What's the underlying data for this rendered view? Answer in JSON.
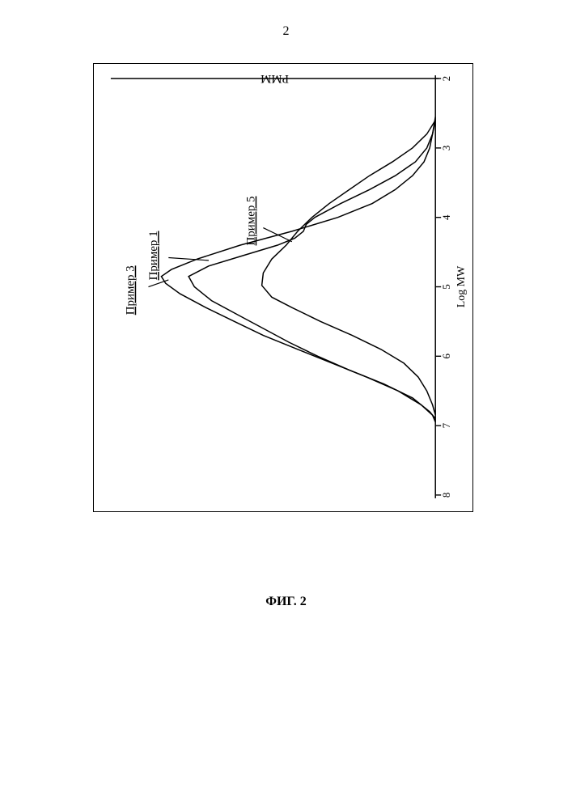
{
  "page": {
    "number": "2",
    "caption": "ФИГ. 2"
  },
  "chart": {
    "type": "line",
    "orientation": "rotated-90-ccw",
    "x_axis": {
      "label": "Log MW",
      "ticks": [
        2,
        3,
        4,
        5,
        6,
        7,
        8
      ],
      "range": [
        2,
        8
      ],
      "label_fontsize": 14,
      "tick_fontsize": 13
    },
    "y_axis": {
      "label": "PMM",
      "label_fontsize": 15,
      "range": [
        0,
        1
      ],
      "ticks": [],
      "show_ticks": false
    },
    "background_color": "#ffffff",
    "line_color": "#000000",
    "line_width": 1.5,
    "series": [
      {
        "name": "Пример 1",
        "label_pos_logmw": 4.55,
        "label_pos_y": 0.97,
        "pointer": {
          "from_logmw": 4.58,
          "from_y": 0.93,
          "to_logmw": 4.62,
          "to_y": 0.79
        },
        "points": [
          [
            2.6,
            0.0
          ],
          [
            2.8,
            0.01
          ],
          [
            3.0,
            0.03
          ],
          [
            3.2,
            0.07
          ],
          [
            3.4,
            0.14
          ],
          [
            3.6,
            0.23
          ],
          [
            3.8,
            0.33
          ],
          [
            4.0,
            0.42
          ],
          [
            4.1,
            0.45
          ],
          [
            4.2,
            0.46
          ],
          [
            4.3,
            0.49
          ],
          [
            4.4,
            0.55
          ],
          [
            4.55,
            0.67
          ],
          [
            4.7,
            0.79
          ],
          [
            4.85,
            0.86
          ],
          [
            5.0,
            0.84
          ],
          [
            5.2,
            0.78
          ],
          [
            5.4,
            0.69
          ],
          [
            5.6,
            0.6
          ],
          [
            5.8,
            0.51
          ],
          [
            6.0,
            0.41
          ],
          [
            6.2,
            0.3
          ],
          [
            6.4,
            0.18
          ],
          [
            6.6,
            0.08
          ],
          [
            6.8,
            0.02
          ],
          [
            6.9,
            0.0
          ]
        ]
      },
      {
        "name": "Пример 3",
        "label_pos_logmw": 5.05,
        "label_pos_y": 1.05,
        "pointer": {
          "from_logmw": 5.0,
          "from_y": 1.0,
          "to_logmw": 4.9,
          "to_y": 0.93
        },
        "points": [
          [
            2.55,
            0.0
          ],
          [
            2.8,
            0.01
          ],
          [
            3.0,
            0.02
          ],
          [
            3.2,
            0.04
          ],
          [
            3.4,
            0.08
          ],
          [
            3.6,
            0.14
          ],
          [
            3.8,
            0.22
          ],
          [
            4.0,
            0.34
          ],
          [
            4.2,
            0.5
          ],
          [
            4.4,
            0.68
          ],
          [
            4.6,
            0.83
          ],
          [
            4.75,
            0.92
          ],
          [
            4.85,
            0.955
          ],
          [
            4.95,
            0.94
          ],
          [
            5.1,
            0.89
          ],
          [
            5.3,
            0.8
          ],
          [
            5.5,
            0.7
          ],
          [
            5.7,
            0.6
          ],
          [
            5.9,
            0.48
          ],
          [
            6.1,
            0.36
          ],
          [
            6.3,
            0.24
          ],
          [
            6.5,
            0.13
          ],
          [
            6.7,
            0.05
          ],
          [
            6.85,
            0.01
          ],
          [
            6.95,
            0.0
          ]
        ]
      },
      {
        "name": "Пример 5",
        "label_pos_logmw": 4.05,
        "label_pos_y": 0.63,
        "pointer": {
          "from_logmw": 4.15,
          "from_y": 0.6,
          "to_logmw": 4.35,
          "to_y": 0.5
        },
        "points": [
          [
            2.6,
            0.0
          ],
          [
            2.8,
            0.03
          ],
          [
            3.0,
            0.08
          ],
          [
            3.2,
            0.15
          ],
          [
            3.4,
            0.23
          ],
          [
            3.6,
            0.3
          ],
          [
            3.8,
            0.37
          ],
          [
            4.0,
            0.43
          ],
          [
            4.2,
            0.48
          ],
          [
            4.4,
            0.52
          ],
          [
            4.6,
            0.57
          ],
          [
            4.8,
            0.6
          ],
          [
            4.98,
            0.605
          ],
          [
            5.15,
            0.57
          ],
          [
            5.3,
            0.5
          ],
          [
            5.5,
            0.4
          ],
          [
            5.7,
            0.29
          ],
          [
            5.9,
            0.19
          ],
          [
            6.1,
            0.11
          ],
          [
            6.3,
            0.06
          ],
          [
            6.5,
            0.03
          ],
          [
            6.7,
            0.01
          ],
          [
            6.85,
            0.0
          ]
        ]
      }
    ],
    "label_fontsize": 15,
    "label_underline": true
  }
}
